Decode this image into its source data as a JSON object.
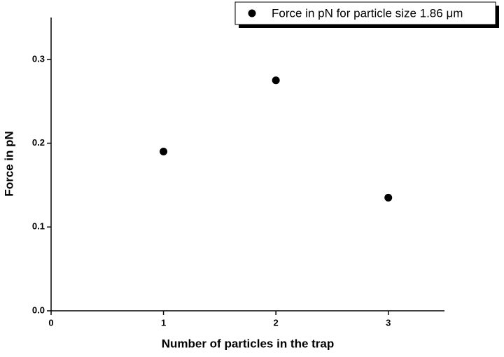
{
  "chart_data": {
    "type": "scatter",
    "x_label": "Number of particles in the trap",
    "y_label": "Force in pN",
    "x": [
      1,
      2,
      3
    ],
    "series": [
      {
        "name": "Force in pN for particle size 1.86 μm",
        "color": "#000000",
        "values": [
          0.19,
          0.275,
          0.135
        ]
      }
    ],
    "xlim": [
      0,
      3.5
    ],
    "ylim": [
      0,
      0.35
    ],
    "xticks": [
      0,
      1,
      2,
      3
    ],
    "yticks": [
      {
        "value": 0,
        "label": "0.0"
      },
      0.1,
      0.2,
      0.3
    ],
    "legend": "upper right",
    "grid": false
  }
}
